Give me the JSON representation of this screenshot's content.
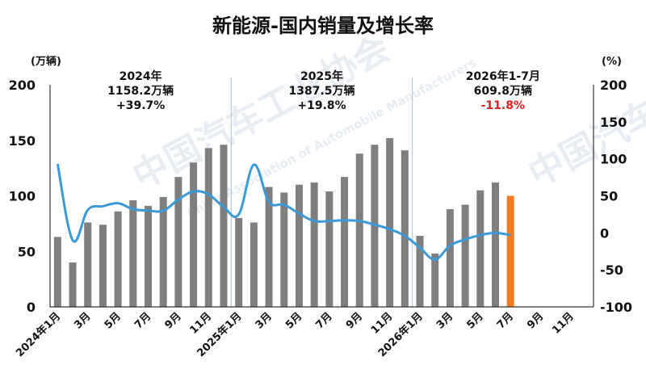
{
  "chart_data": {
    "type": "bar+line",
    "title": "新能源-国内销量及增长率",
    "y_left_unit": "(万辆)",
    "y_right_unit": "(%)",
    "y_left_range": [
      0,
      200
    ],
    "y_right_range": [
      -100,
      200
    ],
    "y_left_ticks": [
      "0",
      "50",
      "100",
      "150",
      "200"
    ],
    "y_right_ticks": [
      "-100",
      "-50",
      "0",
      "50",
      "100",
      "150",
      "200"
    ],
    "x_tick_labels": [
      "2024年1月",
      "3月",
      "5月",
      "7月",
      "9月",
      "11月",
      "2025年1月",
      "3月",
      "5月",
      "7月",
      "9月",
      "11月",
      "2026年1月",
      "3月",
      "5月",
      "7月",
      "9月",
      "11月"
    ],
    "categories": [
      "2024-01",
      "2024-02",
      "2024-03",
      "2024-04",
      "2024-05",
      "2024-06",
      "2024-07",
      "2024-08",
      "2024-09",
      "2024-10",
      "2024-11",
      "2024-12",
      "2025-01",
      "2025-02",
      "2025-03",
      "2025-04",
      "2025-05",
      "2025-06",
      "2025-07",
      "2025-08",
      "2025-09",
      "2025-10",
      "2025-11",
      "2025-12",
      "2026-01",
      "2026-02",
      "2026-03",
      "2026-04",
      "2026-05",
      "2026-06",
      "2026-07",
      "2026-08",
      "2026-09",
      "2026-10",
      "2026-11",
      "2026-12"
    ],
    "sales": [
      63,
      40,
      76,
      74,
      86,
      96,
      91,
      99,
      117,
      130,
      143,
      146,
      80,
      76,
      108,
      103,
      110,
      112,
      104,
      117,
      138,
      146,
      152,
      141,
      64,
      48,
      88,
      92,
      105,
      112,
      100,
      null,
      null,
      null,
      null,
      null
    ],
    "growth": [
      93,
      -10,
      31,
      36,
      40,
      32,
      30,
      30,
      45,
      56,
      52,
      35,
      25,
      92,
      42,
      38,
      26,
      16,
      16,
      17,
      16,
      11,
      5,
      -4,
      -20,
      -36,
      -17,
      -9,
      -3,
      0,
      -3,
      null,
      null,
      null,
      null,
      null
    ],
    "highlight_index": 30,
    "annotations": [
      {
        "lines": [
          "2024年",
          "1158.2万辆",
          "+39.7%"
        ],
        "highlight_last": false
      },
      {
        "lines": [
          "2025年",
          "1387.5万辆",
          "+19.8%"
        ],
        "highlight_last": false
      },
      {
        "lines": [
          "2026年1-7月",
          "609.8万辆",
          "-11.8%"
        ],
        "highlight_last": true
      }
    ],
    "colors": {
      "bar": "#7f7f7f",
      "highlight_bar": "#f47c20",
      "line": "#3a9ad9",
      "divider": "#9ec5e0",
      "axis": "#333333",
      "highlight_text": "#e02020"
    }
  },
  "watermark": {
    "cn": "中国汽车工业协会",
    "en": "China Association of Automobile Manufacturers"
  }
}
